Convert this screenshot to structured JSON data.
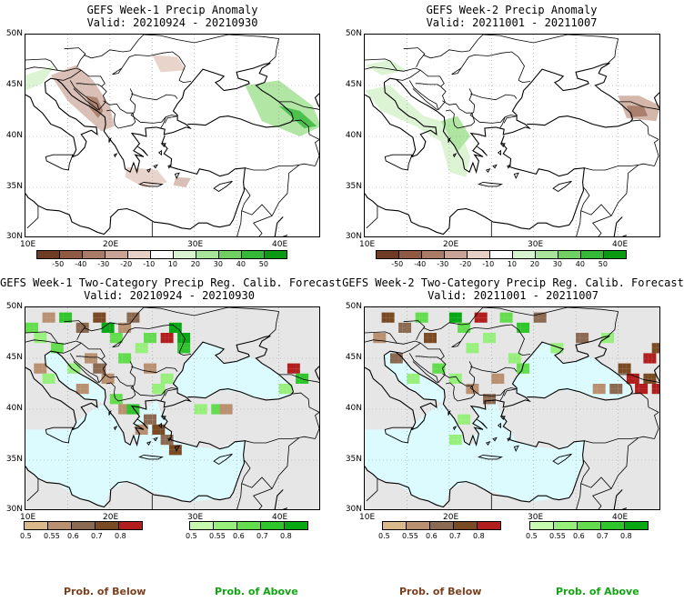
{
  "panels": [
    {
      "title": "GEFS Week-1 Precip Anomaly",
      "valid": "Valid: 20210924 - 20210930"
    },
    {
      "title": "GEFS Week-2 Precip Anomaly",
      "valid": "Valid: 20211001 - 20211007"
    },
    {
      "title": "GEFS Week-1 Two-Category Precip Reg. Calib. Forecast",
      "valid": "Valid: 20210924 - 20210930"
    },
    {
      "title": "GEFS Week-2 Two-Category Precip Reg. Calib. Forecast",
      "valid": "Valid: 20211001 - 20211007"
    }
  ],
  "axes": {
    "lat_labels": [
      "50N",
      "45N",
      "40N",
      "35N",
      "30N"
    ],
    "lon_labels": [
      "10E",
      "20E",
      "30E",
      "40E"
    ]
  },
  "anomaly_colorbar": {
    "labels": [
      "-50",
      "-40",
      "-30",
      "-20",
      "-10",
      "10",
      "20",
      "30",
      "40",
      "50"
    ],
    "colors": [
      "#6e3b23",
      "#8e5a43",
      "#a97a66",
      "#c9a495",
      "#e6cfc5",
      "#ffffff",
      "#d8f3cf",
      "#a8e39a",
      "#6fcf62",
      "#35b837",
      "#0a9a14"
    ]
  },
  "prob_colorbar": {
    "below_labels": [
      "0.5",
      "0.55",
      "0.6",
      "0.7",
      "0.8"
    ],
    "above_labels": [
      "0.5",
      "0.55",
      "0.6",
      "0.7",
      "0.8"
    ],
    "below_colors": [
      "#d9b98a",
      "#b99070",
      "#8c6a52",
      "#7a4a22",
      "#b21e1e"
    ],
    "above_colors": [
      "#c6fbb0",
      "#98f07c",
      "#63dc4e",
      "#2fc62b",
      "#08a814"
    ],
    "below_label": "Prob. of Below",
    "above_label": "Prob. of Above"
  },
  "colors": {
    "ocean": "#dcfbff",
    "no_data": "#e6e6e6",
    "below_word": "#7a3f1e",
    "above_word": "#12a512"
  }
}
